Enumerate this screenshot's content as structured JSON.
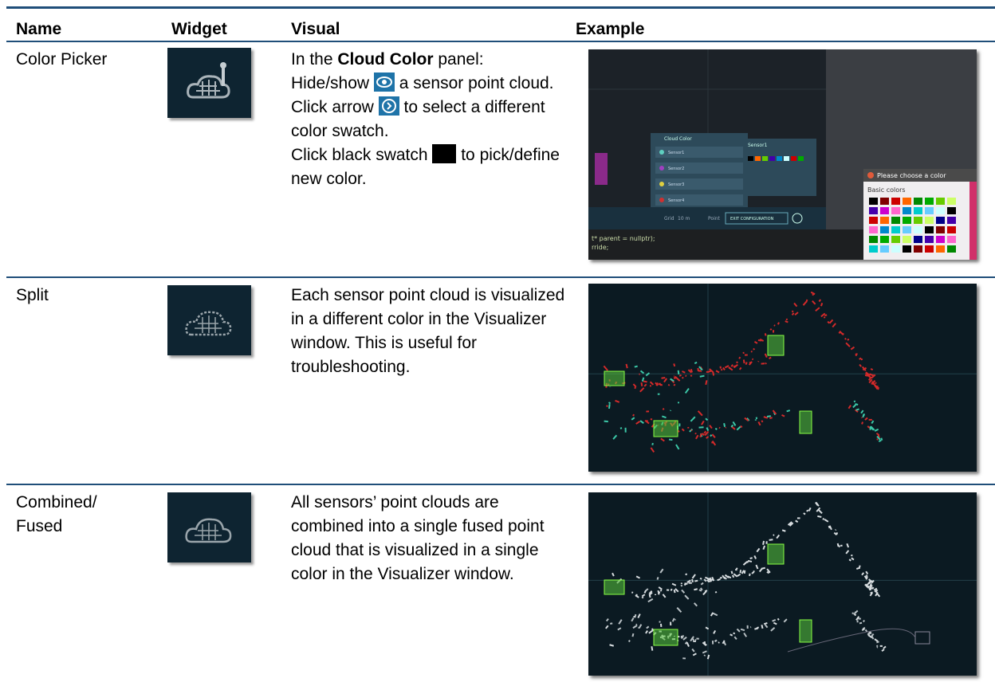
{
  "table": {
    "header": [
      "Name",
      "Widget",
      "Visual",
      "Example"
    ],
    "rows": [
      {
        "name": "Color Picker",
        "visual": [
          "In the ",
          "Cloud Color",
          " panel:",
          "Hide/show ",
          " a sensor point cloud.",
          "Click arrow ",
          " to select a different color swatch.",
          "Click black swatch ",
          " to pick/define new color."
        ]
      },
      {
        "name": "Split",
        "visual": "Each sensor point cloud is visualized in a different color in the Visualizer window. This is useful for troubleshooting."
      },
      {
        "name": "Combined/ Fused",
        "visual": "All sensors’ point clouds are combined into a single fused point cloud that is visualized in a single color in the Visualizer window."
      }
    ]
  },
  "example": {
    "panel_title": "Cloud Color",
    "sensors": [
      "Sensor1",
      "Sensor2",
      "Sensor3",
      "Sensor4"
    ],
    "selected": "Sensor1",
    "grid_label": "Grid",
    "grid_value": "10 m",
    "point_label": "Point",
    "exit_button": "EXIT CONFIGURATION",
    "dialog_title": "Please choose a color",
    "basic_colors": "Basic colors",
    "code": [
      "t* parent = nullptr);",
      "rride;"
    ]
  }
}
